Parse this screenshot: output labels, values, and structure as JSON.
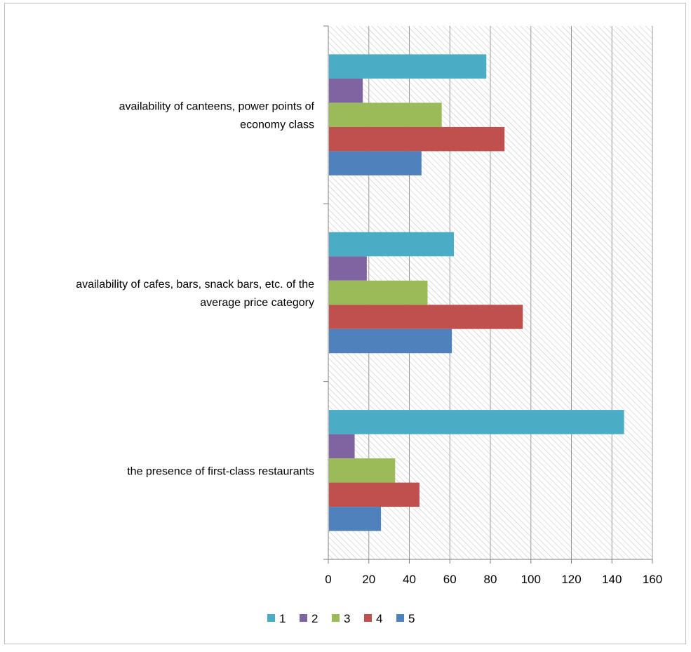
{
  "chart_data": {
    "type": "bar",
    "orientation": "horizontal",
    "title": "",
    "xlabel": "",
    "ylabel": "",
    "xlim": [
      0,
      160
    ],
    "xticks": [
      0,
      20,
      40,
      60,
      80,
      100,
      120,
      140,
      160
    ],
    "grid": true,
    "legend_position": "bottom",
    "categories": [
      {
        "lines": [
          "availability of canteens, power points of",
          "economy class"
        ]
      },
      {
        "lines": [
          "availability of cafes, bars, snack bars, etc. of the",
          "average price category"
        ]
      },
      {
        "lines": [
          "the presence of first-class restaurants"
        ]
      }
    ],
    "series": [
      {
        "name": "1",
        "color": "#4bacc6",
        "values": [
          78,
          62,
          146
        ]
      },
      {
        "name": "2",
        "color": "#8064a2",
        "values": [
          17,
          19,
          13
        ]
      },
      {
        "name": "3",
        "color": "#9bbb59",
        "values": [
          56,
          49,
          33
        ]
      },
      {
        "name": "4",
        "color": "#c0504d",
        "values": [
          87,
          96,
          45
        ]
      },
      {
        "name": "5",
        "color": "#4f81bd",
        "values": [
          46,
          61,
          26
        ]
      }
    ]
  }
}
